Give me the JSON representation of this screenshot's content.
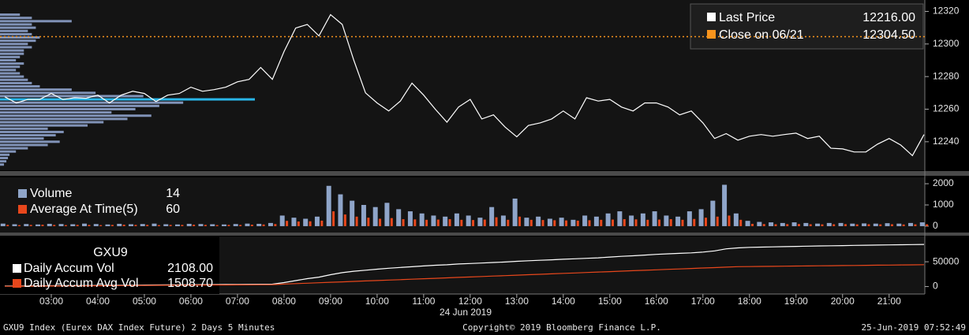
{
  "chart_data": [
    {
      "type": "line",
      "x": [
        2,
        2.25,
        2.5,
        2.75,
        3,
        3.25,
        3.5,
        3.75,
        4,
        4.25,
        4.5,
        4.75,
        5,
        5.25,
        5.5,
        5.75,
        6,
        6.25,
        6.5,
        6.75,
        7,
        7.25,
        7.5,
        7.75,
        8,
        8.25,
        8.5,
        8.75,
        9,
        9.25,
        9.5,
        9.75,
        10,
        10.25,
        10.5,
        10.75,
        11,
        11.25,
        11.5,
        11.75,
        12,
        12.25,
        12.5,
        12.75,
        13,
        13.25,
        13.5,
        13.75,
        14,
        14.25,
        14.5,
        14.75,
        15,
        15.25,
        15.5,
        15.75,
        16,
        16.25,
        16.5,
        16.75,
        17,
        17.25,
        17.5,
        17.75,
        18,
        18.25,
        18.5,
        18.75,
        19,
        19.25,
        19.5,
        19.75,
        20,
        20.25,
        20.5,
        20.75,
        21,
        21.25,
        21.5,
        21.75
      ],
      "series": [
        {
          "name": "Last Price",
          "color": "#ffffff",
          "legend_value": 12216,
          "legend_value_label": "12216.00",
          "values": [
            12267.6,
            12263.8,
            12266,
            12266,
            12269.6,
            12266,
            12267,
            12266.7,
            12268.6,
            12263.8,
            12268.6,
            12271,
            12269.6,
            12264.7,
            12268.6,
            12269.6,
            12273.5,
            12271,
            12272,
            12273.5,
            12276.8,
            12278.3,
            12285.6,
            12278.3,
            12295.3,
            12309.8,
            12312,
            12305,
            12318,
            12312,
            12290,
            12270,
            12263.8,
            12258.9,
            12265,
            12276,
            12268.6,
            12260,
            12252,
            12261.3,
            12266,
            12254,
            12256.5,
            12249,
            12243,
            12250,
            12251.6,
            12254,
            12258.9,
            12254,
            12267,
            12265,
            12266,
            12261.3,
            12258.9,
            12263.8,
            12263.8,
            12261.3,
            12256.5,
            12258.9,
            12251.6,
            12242,
            12245,
            12241,
            12243.4,
            12244.4,
            12243.4,
            12244.4,
            12245.3,
            12242,
            12243.4,
            12236,
            12235.6,
            12233.7,
            12233.7,
            12238.5,
            12242,
            12238,
            12231.5,
            12244.4
          ]
        }
      ],
      "reference_line": {
        "name": "Close on 06/21",
        "color": "#f7941d",
        "value": 12304.5,
        "value_label": "12304.50"
      },
      "volume_profile": {
        "color": "#8193b8",
        "highlight_color": "#29b6e8",
        "levels": [
          12226,
          12228,
          12230,
          12232,
          12234,
          12236,
          12238,
          12240,
          12242,
          12244,
          12246,
          12248,
          12250,
          12252,
          12254,
          12256,
          12258,
          12260,
          12262,
          12264,
          12266,
          12268,
          12270,
          12272,
          12274,
          12276,
          12278,
          12280,
          12282,
          12284,
          12286,
          12288,
          12290,
          12292,
          12294,
          12296,
          12298,
          12300,
          12302,
          12304,
          12306,
          12308,
          12310,
          12312,
          12314,
          12316,
          12318
        ],
        "values": [
          5,
          8,
          10,
          12,
          20,
          35,
          60,
          75,
          55,
          70,
          80,
          60,
          110,
          130,
          160,
          190,
          140,
          170,
          200,
          230,
          320,
          180,
          120,
          90,
          50,
          40,
          35,
          30,
          25,
          20,
          25,
          30,
          20,
          25,
          30,
          30,
          40,
          35,
          45,
          50,
          40,
          35,
          45,
          40,
          90,
          40,
          25
        ]
      },
      "ylim": [
        12222.5,
        12327
      ],
      "yticks": [
        12240,
        12260,
        12280,
        12300,
        12320
      ]
    },
    {
      "type": "bar",
      "series": [
        {
          "name": "Volume",
          "color": "#8fa5c9",
          "legend_value": 14,
          "values": [
            120,
            90,
            100,
            80,
            110,
            100,
            90,
            120,
            100,
            80,
            110,
            90,
            100,
            120,
            90,
            80,
            110,
            100,
            90,
            80,
            100,
            120,
            110,
            150,
            500,
            400,
            350,
            450,
            1900,
            1500,
            1200,
            1000,
            900,
            1100,
            800,
            700,
            600,
            500,
            450,
            600,
            500,
            400,
            900,
            500,
            1300,
            400,
            450,
            350,
            400,
            300,
            500,
            450,
            600,
            700,
            500,
            600,
            700,
            500,
            450,
            700,
            800,
            1200,
            1950,
            600,
            250,
            200,
            180,
            150,
            180,
            150,
            120,
            150,
            150,
            120,
            130,
            120,
            140,
            120,
            150,
            180
          ]
        },
        {
          "name": "Average At Time(5)",
          "color": "#e8471c",
          "legend_value": 60,
          "values": [
            60,
            50,
            60,
            70,
            60,
            50,
            60,
            60,
            50,
            60,
            70,
            60,
            60,
            50,
            60,
            60,
            70,
            60,
            50,
            60,
            60,
            70,
            80,
            100,
            250,
            220,
            230,
            260,
            700,
            550,
            450,
            400,
            350,
            380,
            330,
            320,
            300,
            310,
            330,
            300,
            290,
            310,
            420,
            300,
            450,
            300,
            290,
            280,
            270,
            260,
            280,
            300,
            310,
            330,
            320,
            300,
            310,
            330,
            300,
            340,
            400,
            450,
            500,
            300,
            110,
            100,
            90,
            95,
            100,
            90,
            85,
            90,
            95,
            85,
            90,
            85,
            90,
            80,
            85,
            90
          ]
        }
      ],
      "ylim": [
        -300,
        2300
      ],
      "yticks": [
        0,
        1000,
        2000
      ]
    },
    {
      "type": "line",
      "title": "GXU9",
      "series": [
        {
          "name": "Daily Accum Vol",
          "color": "#ffffff",
          "legend_value": 2108,
          "legend_value_label": "2108.00",
          "values": [
            1000,
            1170,
            1340,
            1510,
            1680,
            1850,
            2020,
            2190,
            2360,
            2530,
            2700,
            2870,
            3040,
            3210,
            3380,
            3550,
            3720,
            3890,
            4060,
            4230,
            4400,
            4570,
            4740,
            4910,
            8000,
            12000,
            16000,
            19000,
            24000,
            28000,
            31000,
            33000,
            35000,
            37000,
            38500,
            40000,
            41500,
            43000,
            44000,
            45500,
            46500,
            47500,
            48500,
            49500,
            51000,
            52000,
            53000,
            54000,
            55000,
            56000,
            57000,
            58000,
            59500,
            61000,
            62000,
            63500,
            65000,
            66000,
            67000,
            68000,
            69500,
            72000,
            76000,
            78000,
            79000,
            79500,
            80000,
            80500,
            81000,
            81500,
            82000,
            82300,
            82600,
            83000,
            83300,
            83600,
            84000,
            84300,
            84600,
            85000
          ]
        },
        {
          "name": "Daily Accum Avg Vol",
          "color": "#e8471c",
          "legend_value": 1508.7,
          "legend_value_label": "1508.70",
          "values": [
            500,
            650,
            800,
            950,
            1100,
            1250,
            1400,
            1550,
            1700,
            1850,
            2000,
            2150,
            2300,
            2450,
            2600,
            2750,
            2900,
            3050,
            3200,
            3350,
            3500,
            3650,
            3800,
            3950,
            5000,
            5900,
            6800,
            7700,
            8600,
            9500,
            10400,
            11300,
            12200,
            13100,
            14000,
            14900,
            15800,
            16700,
            17600,
            18500,
            19400,
            20300,
            21200,
            22100,
            23000,
            23900,
            24800,
            25700,
            26600,
            27500,
            28400,
            29300,
            30200,
            31100,
            32000,
            32900,
            33800,
            34700,
            35600,
            36500,
            37400,
            38300,
            39200,
            40100,
            40350,
            40600,
            40850,
            41100,
            41350,
            41600,
            41850,
            42100,
            42350,
            42600,
            42850,
            43100,
            43350,
            43600,
            43850,
            44100
          ]
        }
      ],
      "ylim": [
        -15000,
        101000
      ],
      "yticks": [
        0,
        {
          "value": 50000,
          "label": "50000"
        }
      ],
      "xlim": [
        2,
        21.75
      ],
      "xticks": [
        {
          "value": 3,
          "label": "03:00"
        },
        {
          "value": 4,
          "label": "04:00"
        },
        {
          "value": 5,
          "label": "05:00"
        },
        {
          "value": 6,
          "label": "06:00"
        },
        {
          "value": 7,
          "label": "07:00"
        },
        {
          "value": 8,
          "label": "08:00"
        },
        {
          "value": 9,
          "label": "09:00"
        },
        {
          "value": 10,
          "label": "10:00"
        },
        {
          "value": 11,
          "label": "11:00"
        },
        {
          "value": 12,
          "label": "12:00"
        },
        {
          "value": 13,
          "label": "13:00"
        },
        {
          "value": 14,
          "label": "14:00"
        },
        {
          "value": 15,
          "label": "15:00"
        },
        {
          "value": 16,
          "label": "16:00"
        },
        {
          "value": 17,
          "label": "17:00"
        },
        {
          "value": 18,
          "label": "18:00"
        },
        {
          "value": 19,
          "label": "19:00"
        },
        {
          "value": 20,
          "label": "20:00"
        },
        {
          "value": 21,
          "label": "21:00"
        }
      ],
      "date_label": "24 Jun 2019"
    }
  ],
  "footer": {
    "left": "GXU9 Index (Eurex DAX Index Future) 2 Days 5 Minutes",
    "center": "Copyright© 2019 Bloomberg Finance L.P.",
    "right": "25-Jun-2019 07:52:49"
  }
}
